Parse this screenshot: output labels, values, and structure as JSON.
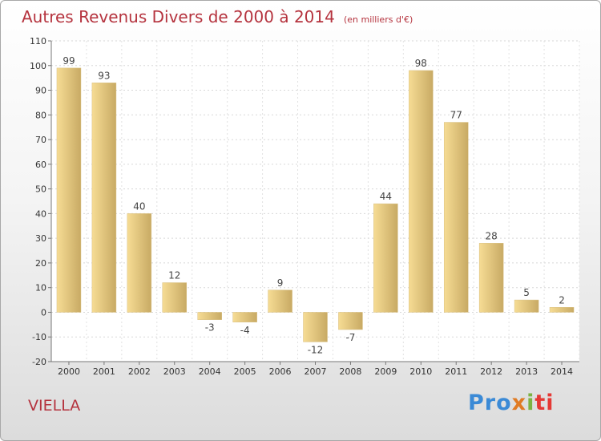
{
  "header": {
    "title": "Autres Revenus Divers de 2000 à 2014",
    "unit": "(en milliers d'€)"
  },
  "footer": {
    "location": "VIELLA",
    "logo_parts": [
      "Pro",
      "x",
      "i",
      "ti"
    ]
  },
  "colors": {
    "title": "#b5333e",
    "bar_light": "#f6dc94",
    "bar_dark": "#c8aa64"
  },
  "chart_data": {
    "type": "bar",
    "title": "Autres Revenus Divers de 2000 à 2014",
    "subtitle": "(en milliers d'€)",
    "xlabel": "",
    "ylabel": "",
    "categories": [
      "2000",
      "2001",
      "2002",
      "2003",
      "2004",
      "2005",
      "2006",
      "2007",
      "2008",
      "2009",
      "2010",
      "2011",
      "2012",
      "2013",
      "2014"
    ],
    "values": [
      99,
      93,
      40,
      12,
      -3,
      -4,
      9,
      -12,
      -7,
      44,
      98,
      77,
      28,
      5,
      2
    ],
    "ylim": [
      -20,
      110
    ],
    "yticks": [
      -20,
      -10,
      0,
      10,
      20,
      30,
      40,
      50,
      60,
      70,
      80,
      90,
      100,
      110
    ],
    "grid": true
  }
}
